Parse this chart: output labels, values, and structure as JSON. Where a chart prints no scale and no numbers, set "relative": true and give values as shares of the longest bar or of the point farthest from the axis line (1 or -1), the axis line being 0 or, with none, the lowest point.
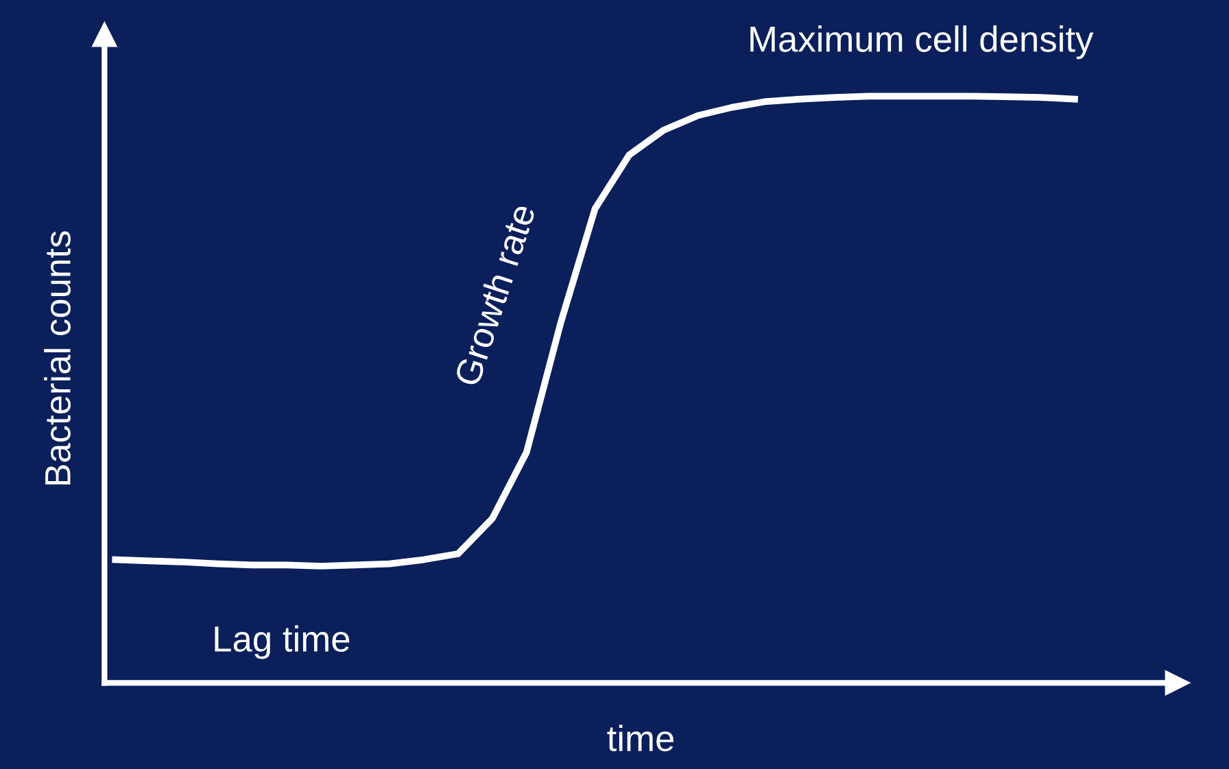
{
  "chart_data": {
    "type": "line",
    "relative": true,
    "xlabel": "time",
    "ylabel": "Bacterial counts",
    "annotations": [
      "Maximum cell density",
      "Growth rate",
      "Lag time"
    ],
    "categories": [
      null,
      null,
      null,
      null,
      null,
      null,
      null,
      null,
      null,
      null,
      null,
      null,
      null,
      null,
      null,
      null,
      null,
      null,
      null,
      null,
      null,
      null,
      null,
      null,
      null,
      null,
      null,
      null,
      null
    ],
    "series": [
      {
        "color": "#ffffff",
        "values": [
          0.21,
          0.208,
          0.206,
          0.203,
          0.201,
          0.201,
          0.199,
          0.201,
          0.203,
          0.21,
          0.22,
          0.28,
          0.393,
          0.614,
          0.808,
          0.9,
          0.942,
          0.967,
          0.981,
          0.991,
          0.995,
          0.998,
          1.0,
          1.0,
          1.0,
          1.0,
          0.999,
          0.998,
          0.995
        ]
      }
    ],
    "tick_labels": false,
    "grid": false,
    "legend": false,
    "line_style": "solid",
    "marker": "none"
  }
}
